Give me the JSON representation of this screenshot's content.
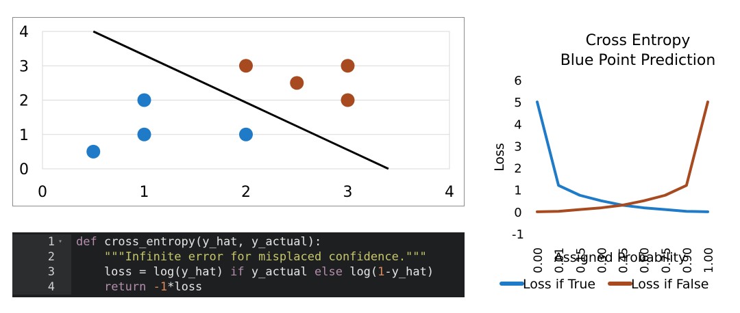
{
  "chart_data": [
    {
      "type": "scatter",
      "title": "",
      "xlabel": "",
      "ylabel": "",
      "xlim": [
        0,
        4
      ],
      "ylim": [
        0,
        4
      ],
      "x_ticks": [
        "0",
        "1",
        "2",
        "3",
        "4"
      ],
      "y_ticks": [
        "0",
        "1",
        "2",
        "3",
        "4"
      ],
      "grid": true,
      "series": [
        {
          "color": "#1f7bc8",
          "points": [
            [
              0.5,
              0.5
            ],
            [
              1,
              1
            ],
            [
              1,
              2
            ],
            [
              2,
              1
            ]
          ]
        },
        {
          "color": "#a84a20",
          "points": [
            [
              2,
              3
            ],
            [
              2.5,
              2.5
            ],
            [
              3,
              3
            ],
            [
              3,
              2
            ]
          ]
        }
      ],
      "decision_line": {
        "color": "#000000",
        "from": [
          0.5,
          4
        ],
        "to": [
          3.4,
          0
        ]
      }
    },
    {
      "type": "line",
      "title_lines": [
        "Cross Entropy",
        "Blue Point Prediction"
      ],
      "xlabel": "Assigned Probability",
      "ylabel": "Loss",
      "categories": [
        "0.00",
        "0.01",
        "0.15",
        "0.30",
        "0.45",
        "0.60",
        "0.75",
        "0.90",
        "1.00"
      ],
      "y_ticks": [
        "6",
        "5",
        "4",
        "3",
        "2",
        "1",
        "0",
        "-1"
      ],
      "ylim": [
        -1,
        6
      ],
      "legend_position": "bottom",
      "series": [
        {
          "name": "Loss if True",
          "color": "#1f7bc8",
          "values": [
            5,
            1.2,
            0.75,
            0.5,
            0.3,
            0.18,
            0.1,
            0.02,
            0
          ]
        },
        {
          "name": "Loss if False",
          "color": "#a84a20",
          "values": [
            0,
            0.02,
            0.1,
            0.18,
            0.3,
            0.5,
            0.75,
            1.2,
            5
          ]
        }
      ]
    }
  ],
  "code": {
    "lines": [
      {
        "num": "1",
        "fold": "▾",
        "segments": [
          {
            "t": "def",
            "c": "kw"
          },
          {
            "t": " cross_entropy(y_hat, y_actual):",
            "c": ""
          }
        ]
      },
      {
        "num": "2",
        "fold": "",
        "segments": [
          {
            "t": "    ",
            "c": ""
          },
          {
            "t": "\"\"\"Infinite error for misplaced confidence.\"\"\"",
            "c": "str"
          }
        ]
      },
      {
        "num": "3",
        "fold": "",
        "segments": [
          {
            "t": "    loss = log(y_hat) ",
            "c": ""
          },
          {
            "t": "if",
            "c": "kw"
          },
          {
            "t": " y_actual ",
            "c": ""
          },
          {
            "t": "else",
            "c": "kw"
          },
          {
            "t": " log(",
            "c": ""
          },
          {
            "t": "1",
            "c": "num"
          },
          {
            "t": "-y_hat)",
            "c": ""
          }
        ]
      },
      {
        "num": "4",
        "fold": "",
        "segments": [
          {
            "t": "    ",
            "c": ""
          },
          {
            "t": "return",
            "c": "kw"
          },
          {
            "t": " ",
            "c": ""
          },
          {
            "t": "-1",
            "c": "num"
          },
          {
            "t": "*loss",
            "c": ""
          }
        ]
      }
    ]
  }
}
